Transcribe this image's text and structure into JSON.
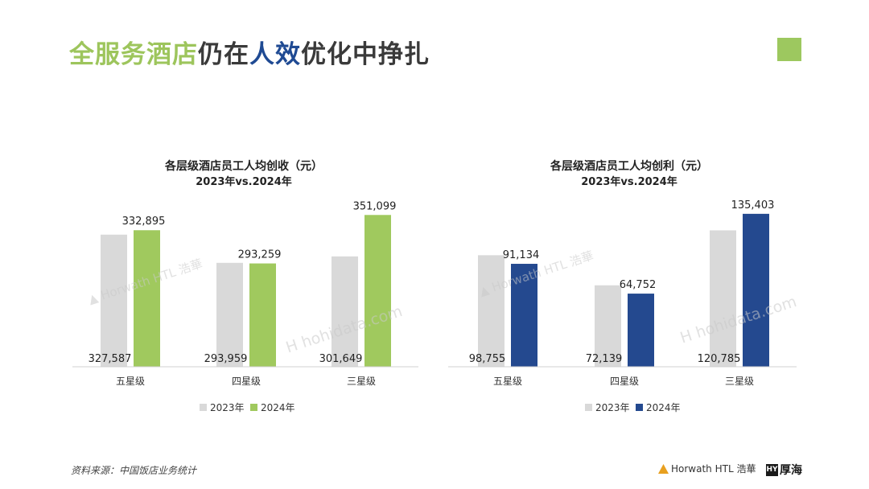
{
  "page": {
    "title_part1": "全服务酒店",
    "title_part2": "仍在",
    "title_part3": "人效",
    "title_part4": "优化中挣扎",
    "source_note": "资料来源：中国饭店业务统计"
  },
  "colors": {
    "title_green": "#9dc55c",
    "title_gray": "#3a3a3a",
    "title_blue": "#1f4a93",
    "accent_square": "#9dc85f",
    "bar_2023": "#d9d9d9",
    "bar_2024_left": "#a0c95e",
    "bar_2024_right": "#24498f"
  },
  "logos": {
    "horwath_text": "Horwath HTL 浩華",
    "hy_box": "HY",
    "hy_text": "厚海"
  },
  "watermarks": {
    "horwath": "Horwath HTL 浩華",
    "hohidata": "hohidata.com"
  },
  "chart_data": [
    {
      "type": "bar",
      "title": "各层级酒店员工人均创收（元）",
      "subtitle": "2023年vs.2024年",
      "categories": [
        "五星级",
        "四星级",
        "三星级"
      ],
      "series": [
        {
          "name": "2023年",
          "values": [
            327587,
            293959,
            301649
          ],
          "labels": [
            "327,587",
            "293,959",
            "301,649"
          ]
        },
        {
          "name": "2024年",
          "values": [
            332895,
            293259,
            351099
          ],
          "labels": [
            "332,895",
            "293,259",
            "351,099"
          ]
        }
      ],
      "ylim": [
        170000,
        360000
      ],
      "legend": "bottom",
      "grid": false
    },
    {
      "type": "bar",
      "title": "各层级酒店员工人均创利（元）",
      "subtitle": "2023年vs.2024年",
      "categories": [
        "五星级",
        "四星级",
        "三星级"
      ],
      "series": [
        {
          "name": "2023年",
          "values": [
            98755,
            72139,
            120785
          ],
          "labels": [
            "98,755",
            "72,139",
            "120,785"
          ]
        },
        {
          "name": "2024年",
          "values": [
            91134,
            64752,
            135403
          ],
          "labels": [
            "91,134",
            "64,752",
            "135,403"
          ]
        }
      ],
      "ylim": [
        0,
        141000
      ],
      "legend": "bottom",
      "grid": false
    }
  ]
}
